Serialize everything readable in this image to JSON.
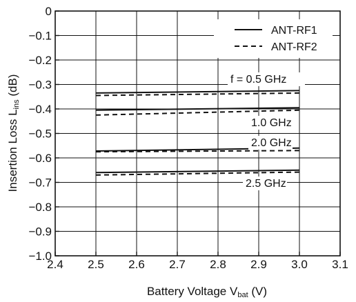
{
  "chart_data": {
    "type": "line",
    "title": "",
    "xlabel": {
      "main": "Battery Voltage  V",
      "sub": "bat",
      "unit": " (V)"
    },
    "ylabel": {
      "main": "Insertion Loss  L",
      "sub": "ins",
      "unit": " (dB)"
    },
    "xlim": [
      2.4,
      3.1
    ],
    "ylim": [
      -1.0,
      0
    ],
    "x_ticks": [
      "2.4",
      "2.5",
      "2.6",
      "2.7",
      "2.8",
      "2.9",
      "3.0",
      "3.1"
    ],
    "y_ticks": [
      "0",
      "−0.1",
      "−0.2",
      "−0.3",
      "−0.4",
      "−0.5",
      "−0.6",
      "−0.7",
      "−0.8",
      "−0.9",
      "−1.0"
    ],
    "grid": true,
    "legend_position": "top-right",
    "legend": [
      {
        "label": "ANT-RF1",
        "style": "solid"
      },
      {
        "label": "ANT-RF2",
        "style": "dashed"
      }
    ],
    "annotations": [
      "f = 0.5 GHz",
      "1.0 GHz",
      "2.0 GHz",
      "2.5 GHz"
    ],
    "series": [
      {
        "group": "0.5 GHz",
        "style": "solid",
        "x": [
          2.5,
          3.0
        ],
        "y": [
          -0.335,
          -0.325
        ]
      },
      {
        "group": "0.5 GHz",
        "style": "dashed",
        "x": [
          2.5,
          3.0
        ],
        "y": [
          -0.345,
          -0.335
        ]
      },
      {
        "group": "1.0 GHz",
        "style": "solid",
        "x": [
          2.5,
          3.0
        ],
        "y": [
          -0.405,
          -0.395
        ]
      },
      {
        "group": "1.0 GHz",
        "style": "dashed",
        "x": [
          2.5,
          3.0
        ],
        "y": [
          -0.425,
          -0.405
        ]
      },
      {
        "group": "2.0 GHz",
        "style": "solid",
        "x": [
          2.5,
          3.0
        ],
        "y": [
          -0.572,
          -0.56
        ]
      },
      {
        "group": "2.0 GHz",
        "style": "dashed",
        "x": [
          2.5,
          3.0
        ],
        "y": [
          -0.575,
          -0.57
        ]
      },
      {
        "group": "2.5 GHz",
        "style": "solid",
        "x": [
          2.5,
          3.0
        ],
        "y": [
          -0.66,
          -0.65
        ]
      },
      {
        "group": "2.5 GHz",
        "style": "dashed",
        "x": [
          2.5,
          3.0
        ],
        "y": [
          -0.67,
          -0.658
        ]
      }
    ],
    "colors": {
      "line": "#111111",
      "grid": "#111111",
      "background": "#ffffff"
    }
  }
}
